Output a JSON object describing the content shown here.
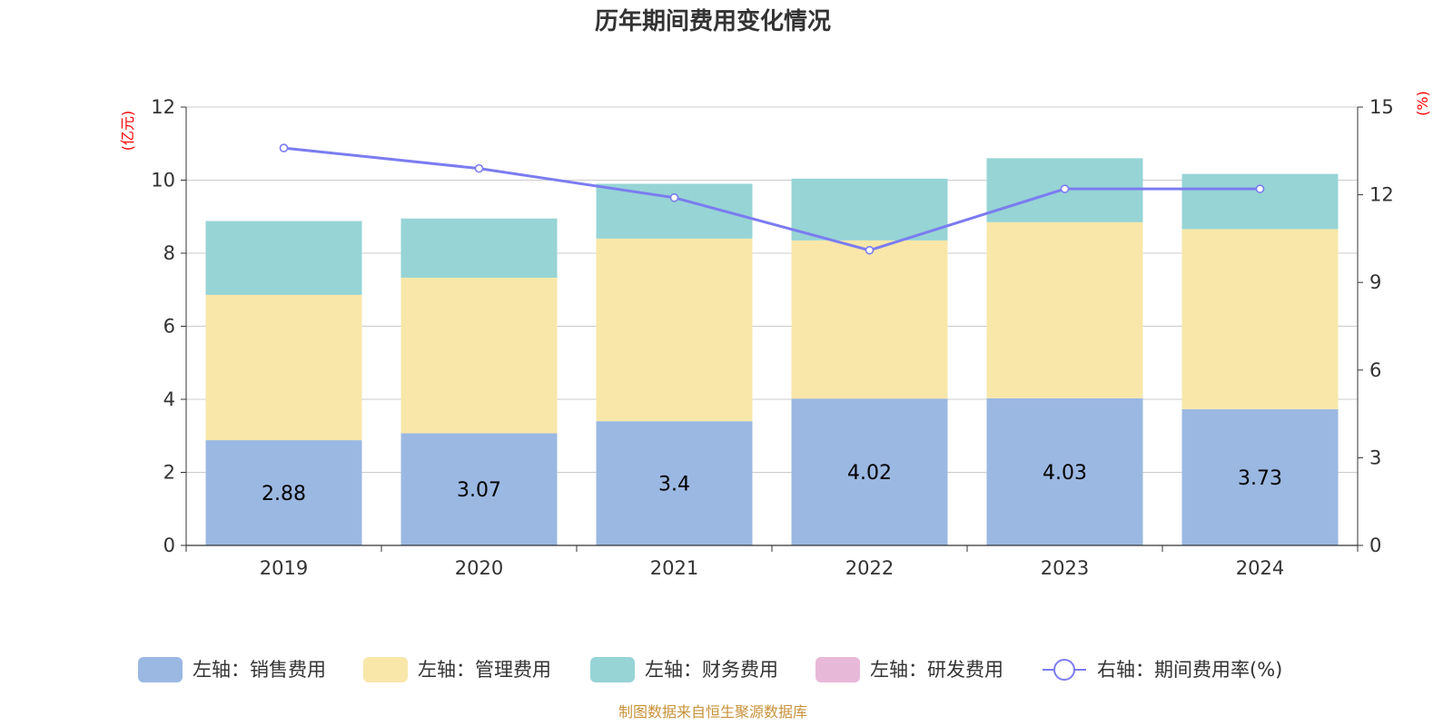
{
  "chart_data": {
    "type": "bar",
    "title": "历年期间费用变化情况",
    "categories": [
      "2019",
      "2020",
      "2021",
      "2022",
      "2023",
      "2024"
    ],
    "left_axis": {
      "unit": "(亿元)",
      "ylim": [
        0,
        12
      ],
      "ticks": [
        "0",
        "2",
        "4",
        "6",
        "8",
        "10",
        "12"
      ]
    },
    "right_axis": {
      "unit": "(%)",
      "ylim": [
        0,
        15
      ],
      "ticks": [
        "0",
        "3",
        "6",
        "9",
        "12",
        "15"
      ]
    },
    "series": [
      {
        "name": "左轴：销售费用",
        "axis": "left",
        "stack": "total",
        "color": "#9bb8e2",
        "values": [
          2.88,
          3.07,
          3.4,
          4.02,
          4.03,
          3.73
        ],
        "labels": [
          "2.88",
          "3.07",
          "3.4",
          "4.02",
          "4.03",
          "3.73"
        ]
      },
      {
        "name": "左轴：管理费用",
        "axis": "left",
        "stack": "total",
        "color": "#f8e7a9",
        "values": [
          3.98,
          4.26,
          5.0,
          4.33,
          4.82,
          4.93
        ]
      },
      {
        "name": "左轴：财务费用",
        "axis": "left",
        "stack": "total",
        "color": "#97d4d5",
        "values": [
          2.02,
          1.62,
          1.5,
          1.69,
          1.75,
          1.51
        ]
      },
      {
        "name": "左轴：研发费用",
        "axis": "left",
        "stack": "total",
        "color": "#e8b8d9",
        "values": [
          0,
          0,
          0,
          0,
          0,
          0
        ]
      },
      {
        "name": "右轴：期间费用率(%)",
        "axis": "right",
        "type": "line",
        "color": "#7b7cf0",
        "values": [
          13.6,
          12.9,
          11.9,
          10.1,
          12.2,
          12.2
        ]
      }
    ],
    "grid": true,
    "legend_position": "bottom"
  },
  "footer": {
    "source": "制图数据来自恒生聚源数据库"
  }
}
